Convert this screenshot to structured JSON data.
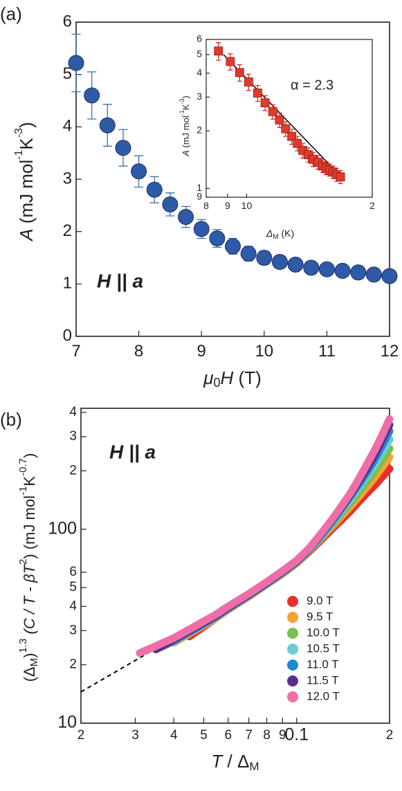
{
  "chart_data": [
    {
      "type": "scatter",
      "panel_label": "(a)",
      "annotation": "H || a",
      "xlabel": [
        "μ",
        "0",
        "H",
        " (T)"
      ],
      "ylabel": [
        "A",
        " (mJ mol",
        "-1",
        "K",
        "-3",
        ")"
      ],
      "x": [
        7,
        7.25,
        7.5,
        7.75,
        8,
        8.25,
        8.5,
        8.75,
        9,
        9.25,
        9.5,
        9.75,
        10,
        10.25,
        10.5,
        10.75,
        11,
        11.25,
        11.5,
        11.75,
        12
      ],
      "values": [
        5.22,
        4.6,
        4.03,
        3.6,
        3.15,
        2.8,
        2.52,
        2.28,
        2.05,
        1.87,
        1.72,
        1.58,
        1.5,
        1.42,
        1.37,
        1.31,
        1.28,
        1.25,
        1.22,
        1.18,
        1.15
      ],
      "errors": [
        0.55,
        0.45,
        0.4,
        0.35,
        0.3,
        0.25,
        0.22,
        0.2,
        0.18,
        0.17,
        0.15,
        0.14,
        0.13,
        0.12,
        0.11,
        0.1,
        0.1,
        0.09,
        0.09,
        0.09,
        0.09
      ],
      "color": "#2f5aa8",
      "marker": "circle",
      "log": false,
      "xlim": [
        7,
        12
      ],
      "xticks": [
        7,
        8,
        9,
        10,
        11,
        12
      ],
      "ylim": [
        0,
        6
      ],
      "yticks": [
        0,
        1,
        2,
        3,
        4,
        5,
        6
      ]
    },
    {
      "type": "scatter",
      "annotation": "α = 2.3",
      "xlabel": [
        "Δ",
        "M",
        " (K)"
      ],
      "ylabel": [
        "A",
        " (mJ mol",
        "-1",
        "K",
        "-3",
        ")"
      ],
      "x": [
        8.56,
        9.14,
        9.62,
        10.11,
        10.63,
        11.07,
        11.55,
        11.99,
        12.4,
        12.83,
        13.23,
        13.63,
        14.05,
        14.43,
        14.82,
        15.21,
        15.5,
        15.8,
        16.1,
        16.41,
        16.78
      ],
      "values": [
        5.22,
        4.6,
        4.03,
        3.6,
        3.15,
        2.8,
        2.52,
        2.28,
        2.05,
        1.87,
        1.72,
        1.58,
        1.5,
        1.42,
        1.37,
        1.31,
        1.28,
        1.25,
        1.22,
        1.18,
        1.15
      ],
      "errors": [
        0.55,
        0.45,
        0.4,
        0.35,
        0.3,
        0.25,
        0.22,
        0.2,
        0.18,
        0.17,
        0.15,
        0.14,
        0.13,
        0.12,
        0.11,
        0.1,
        0.1,
        0.09,
        0.09,
        0.09,
        0.09
      ],
      "color": "#e03a2f",
      "marker": "square",
      "log": true,
      "fit_line": {
        "x": [
          8.8,
          17.2
        ],
        "values": [
          5.0,
          1.1
        ],
        "color": "#000000",
        "dashed": false
      },
      "xlim": [
        8,
        20
      ],
      "xticks": [
        8,
        9,
        10,
        {
          "value": 20,
          "label": "2"
        }
      ],
      "ylim": [
        0.9,
        6
      ],
      "yticks": [
        {
          "value": 0.9,
          "label": "9"
        },
        1,
        2,
        3,
        4,
        5,
        6
      ]
    },
    {
      "type": "line",
      "panel_label": "(b)",
      "annotation": "H || a",
      "xlabel": [
        "T",
        " / Δ",
        "M"
      ],
      "ylabel": [
        "(Δ",
        "M",
        ")",
        "1.3",
        " (C / T - βT",
        "2",
        ") (mJ mol",
        "-1",
        "K",
        "-0.7",
        ")"
      ],
      "log": true,
      "legend": "lower right",
      "x": [
        0.031,
        0.035,
        0.04,
        0.045,
        0.05,
        0.055,
        0.06,
        0.07,
        0.08,
        0.09,
        0.1,
        0.11,
        0.12,
        0.13,
        0.14,
        0.15,
        0.16,
        0.17,
        0.18,
        0.19,
        0.2
      ],
      "series": [
        {
          "name": "9.0 T",
          "color": "#e8302a",
          "values": [
            null,
            null,
            null,
            28,
            31.5,
            35,
            38.5,
            45,
            52,
            59,
            67,
            77,
            88,
            100,
            112,
            125,
            140,
            155,
            170,
            187,
            205
          ]
        },
        {
          "name": "9.5 T",
          "color": "#f7a234",
          "values": [
            null,
            null,
            26,
            29,
            32,
            35,
            38.5,
            45,
            52,
            59.5,
            67.5,
            78,
            90,
            103,
            117,
            132,
            149,
            167,
            187,
            210,
            235
          ]
        },
        {
          "name": "10.0 T",
          "color": "#77c14d",
          "values": [
            null,
            null,
            27,
            29.5,
            32.5,
            35.5,
            39,
            45.5,
            52,
            59.5,
            67.5,
            78,
            91,
            105,
            121,
            138,
            157,
            178,
            203,
            230,
            260
          ]
        },
        {
          "name": "10.5 T",
          "color": "#6dcbd8",
          "values": [
            null,
            null,
            26.5,
            29.5,
            32.5,
            35.5,
            39,
            45.5,
            52.5,
            60,
            68,
            79,
            92,
            107,
            125,
            144,
            166,
            190,
            218,
            252,
            290
          ]
        },
        {
          "name": "11.0 T",
          "color": "#1f8ad0",
          "values": [
            null,
            24,
            26.5,
            29.5,
            32.5,
            35.5,
            39,
            45.5,
            52.5,
            60,
            68,
            79,
            93,
            109,
            128,
            149,
            173,
            200,
            232,
            273,
            320
          ]
        },
        {
          "name": "11.5 T",
          "color": "#5b2f8d",
          "values": [
            null,
            24,
            27,
            30,
            33,
            36,
            39.5,
            46,
            53,
            60.5,
            68.5,
            80,
            94,
            111,
            130,
            152,
            179,
            209,
            245,
            292,
            345
          ]
        },
        {
          "name": "12.0 T",
          "color": "#ee6fa8",
          "values": [
            23,
            25,
            27.5,
            30.5,
            33.5,
            36.5,
            40,
            46.5,
            53.5,
            61,
            69,
            80,
            95,
            112,
            132,
            155,
            185,
            220,
            260,
            310,
            370
          ]
        }
      ],
      "fit_line": {
        "x": [
          0.02,
          0.08
        ],
        "values": [
          14.5,
          52
        ],
        "color": "#000000",
        "dashed": true
      },
      "xlim": [
        0.02,
        0.2
      ],
      "xticks": [
        {
          "value": 0.02,
          "label": "2"
        },
        {
          "value": 0.03,
          "label": "3"
        },
        {
          "value": 0.04,
          "label": "4"
        },
        {
          "value": 0.05,
          "label": "5"
        },
        {
          "value": 0.06,
          "label": "6"
        },
        {
          "value": 0.07,
          "label": "7"
        },
        {
          "value": 0.08,
          "label": "8"
        },
        {
          "value": 0.09,
          "label": "9"
        },
        0.1,
        {
          "value": 0.2,
          "label": "2"
        }
      ],
      "ylim": [
        10,
        420
      ],
      "yticks": [
        10,
        {
          "value": 20,
          "label": "2"
        },
        {
          "value": 30,
          "label": "3"
        },
        {
          "value": 40,
          "label": "4"
        },
        {
          "value": 50,
          "label": "5"
        },
        {
          "value": 60,
          "label": "6"
        },
        100,
        {
          "value": 200,
          "label": "2"
        },
        {
          "value": 300,
          "label": "3"
        },
        {
          "value": 400,
          "label": "4"
        }
      ]
    }
  ]
}
